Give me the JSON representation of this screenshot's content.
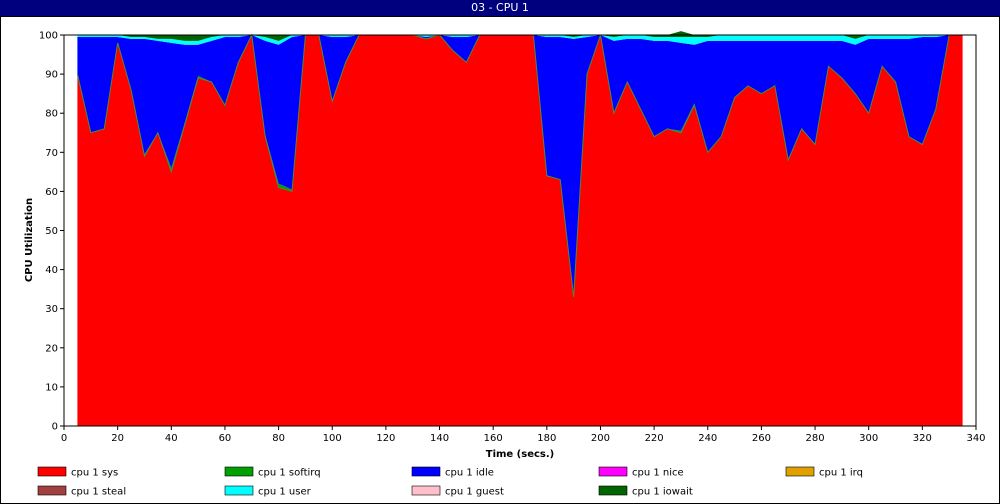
{
  "window": {
    "title": "03 - CPU 1"
  },
  "chart_data": {
    "type": "area",
    "stacked": true,
    "xlabel": "Time (secs.)",
    "ylabel": "CPU Utilization",
    "xlim": [
      0,
      340
    ],
    "ylim": [
      0,
      100
    ],
    "x_ticks": [
      0,
      20,
      40,
      60,
      80,
      100,
      120,
      140,
      160,
      180,
      200,
      220,
      240,
      260,
      280,
      300,
      320,
      340
    ],
    "y_ticks": [
      0,
      10,
      20,
      30,
      40,
      50,
      60,
      70,
      80,
      90,
      100
    ],
    "grid": false,
    "legend_position": "bottom",
    "x": [
      5,
      10,
      15,
      20,
      25,
      30,
      35,
      40,
      45,
      50,
      55,
      60,
      65,
      70,
      75,
      80,
      85,
      90,
      95,
      100,
      105,
      110,
      115,
      120,
      125,
      130,
      135,
      140,
      145,
      150,
      155,
      160,
      165,
      170,
      175,
      180,
      185,
      190,
      195,
      200,
      205,
      210,
      215,
      220,
      225,
      230,
      235,
      240,
      245,
      250,
      255,
      260,
      265,
      270,
      275,
      280,
      285,
      290,
      295,
      300,
      305,
      310,
      315,
      320,
      325,
      330,
      335
    ],
    "series": [
      {
        "name": "cpu 1 sys",
        "color": "#ff0000",
        "values": [
          90,
          75,
          76,
          98,
          86,
          69,
          75,
          65,
          77,
          89,
          88,
          82,
          93,
          100,
          74,
          61,
          60,
          100,
          100,
          83,
          93,
          100,
          100,
          100,
          100,
          100,
          99,
          100,
          96,
          93,
          100,
          100,
          100,
          100,
          100,
          64,
          63,
          33,
          90,
          100,
          80,
          88,
          81,
          74,
          76,
          75,
          82,
          70,
          74,
          84,
          87,
          85,
          87,
          68,
          76,
          72,
          92,
          89,
          85,
          80,
          92,
          88,
          74,
          72,
          81,
          100,
          100
        ]
      },
      {
        "name": "cpu 1 softirq",
        "color": "#00a000",
        "values": [
          0,
          0,
          0,
          0,
          0,
          0.5,
          0,
          1,
          0.5,
          0.5,
          0,
          0,
          0,
          0,
          0.5,
          1,
          0.5,
          0,
          0,
          0,
          0,
          0,
          0,
          0,
          0,
          0,
          0,
          0,
          0,
          0,
          0,
          0,
          0,
          0,
          0,
          0,
          0,
          0,
          0,
          0,
          0,
          0,
          0,
          0,
          0,
          0.5,
          0.5,
          0,
          0,
          0,
          0,
          0,
          0,
          0,
          0,
          0,
          0,
          0,
          0,
          0,
          0,
          0,
          0,
          0,
          0,
          0,
          0
        ]
      },
      {
        "name": "cpu 1 idle",
        "color": "#0000ff",
        "values": [
          9.5,
          24.5,
          23.5,
          1.5,
          13,
          29.5,
          23.5,
          32,
          20,
          8,
          10.5,
          17.5,
          6.5,
          0,
          24,
          35.5,
          39,
          0,
          0,
          16.5,
          6.5,
          0,
          0,
          0,
          0,
          0,
          0.5,
          0,
          3.5,
          6.5,
          0,
          0,
          0,
          0,
          0,
          35.5,
          36.5,
          66,
          9.5,
          0,
          18.5,
          11,
          18,
          24.5,
          22.5,
          22.5,
          15,
          28.5,
          24.5,
          14.5,
          11.5,
          13.5,
          11.5,
          30.5,
          22.5,
          26.5,
          6.5,
          9.5,
          12.5,
          19,
          7,
          11,
          25,
          27.5,
          18.5,
          0,
          0
        ]
      },
      {
        "name": "cpu 1 nice",
        "color": "#ff00ff",
        "values": [
          0,
          0,
          0,
          0,
          0,
          0,
          0,
          0,
          0,
          0,
          0,
          0,
          0,
          0,
          0,
          0,
          0,
          0,
          0,
          0,
          0,
          0,
          0,
          0,
          0,
          0,
          0,
          0,
          0,
          0,
          0,
          0,
          0,
          0,
          0,
          0,
          0,
          0,
          0,
          0,
          0,
          0,
          0,
          0,
          0,
          0,
          0,
          0,
          0,
          0,
          0,
          0,
          0,
          0,
          0,
          0,
          0,
          0,
          0,
          0,
          0,
          0,
          0,
          0,
          0,
          0,
          0
        ]
      },
      {
        "name": "cpu 1 irq",
        "color": "#e0a000",
        "values": [
          0,
          0,
          0,
          0,
          0,
          0,
          0,
          0,
          0,
          0,
          0,
          0,
          0,
          0,
          0,
          0,
          0,
          0,
          0,
          0,
          0,
          0,
          0,
          0,
          0,
          0,
          0,
          0,
          0,
          0,
          0,
          0,
          0,
          0,
          0,
          0,
          0,
          0,
          0,
          0,
          0,
          0,
          0,
          0,
          0,
          0,
          0,
          0,
          0,
          0,
          0,
          0,
          0,
          0,
          0,
          0,
          0,
          0,
          0,
          0,
          0,
          0,
          0,
          0,
          0,
          0,
          0
        ]
      },
      {
        "name": "cpu 1 steal",
        "color": "#a04040",
        "values": [
          0,
          0,
          0,
          0,
          0,
          0,
          0,
          0,
          0,
          0,
          0,
          0,
          0,
          0,
          0,
          0,
          0,
          0,
          0,
          0,
          0,
          0,
          0,
          0,
          0,
          0,
          0,
          0,
          0,
          0,
          0,
          0,
          0,
          0,
          0,
          0,
          0,
          0,
          0,
          0,
          0,
          0,
          0,
          0,
          0,
          0,
          0,
          0,
          0,
          0,
          0,
          0,
          0,
          0,
          0,
          0,
          0,
          0,
          0,
          0,
          0,
          0,
          0,
          0,
          0,
          0,
          0
        ]
      },
      {
        "name": "cpu 1 user",
        "color": "#00ffff",
        "values": [
          0.5,
          0.5,
          0.5,
          0.5,
          0.5,
          0.5,
          0.5,
          1,
          1,
          1,
          1,
          0.5,
          0.5,
          0,
          1,
          1,
          0.5,
          0,
          0,
          0.5,
          0.5,
          0,
          0,
          0,
          0,
          0,
          0.5,
          0,
          0.5,
          0.5,
          0,
          0,
          0,
          0,
          0,
          0.5,
          0.5,
          0.5,
          0.5,
          0,
          1,
          1,
          1,
          1,
          1,
          1.5,
          2,
          1,
          1.5,
          1.5,
          1.5,
          1.5,
          1.5,
          1.5,
          1.5,
          1.5,
          1.5,
          1.5,
          1.5,
          1,
          1,
          1,
          1,
          0.5,
          0.5,
          0,
          0
        ]
      },
      {
        "name": "cpu 1 guest",
        "color": "#ffc0cb",
        "values": [
          0,
          0,
          0,
          0,
          0,
          0,
          0,
          0,
          0,
          0,
          0,
          0,
          0,
          0,
          0,
          0,
          0,
          0,
          0,
          0,
          0,
          0,
          0,
          0,
          0,
          0,
          0,
          0,
          0,
          0,
          0,
          0,
          0,
          0,
          0,
          0,
          0,
          0,
          0,
          0,
          0,
          0,
          0,
          0,
          0,
          0,
          0,
          0,
          0,
          0,
          0,
          0,
          0,
          0,
          0,
          0,
          0,
          0,
          0,
          0,
          0,
          0,
          0,
          0,
          0,
          0,
          0
        ]
      },
      {
        "name": "cpu 1 iowait",
        "color": "#006400",
        "values": [
          0,
          0,
          0,
          0,
          0.5,
          0.5,
          1,
          1,
          1.5,
          1.5,
          0.5,
          0,
          0,
          0,
          0.5,
          1.5,
          0,
          0,
          0,
          0,
          0,
          0,
          0,
          0,
          0,
          0,
          0,
          0,
          0,
          0,
          0,
          0,
          0,
          0,
          0,
          0,
          0,
          0.5,
          0,
          0,
          0.5,
          0,
          0,
          0.5,
          0.5,
          1.5,
          0.5,
          0.5,
          0,
          0,
          0,
          0,
          0,
          0,
          0,
          0,
          0,
          0,
          1,
          0,
          0,
          0,
          0,
          0,
          0,
          0,
          0
        ]
      }
    ]
  }
}
